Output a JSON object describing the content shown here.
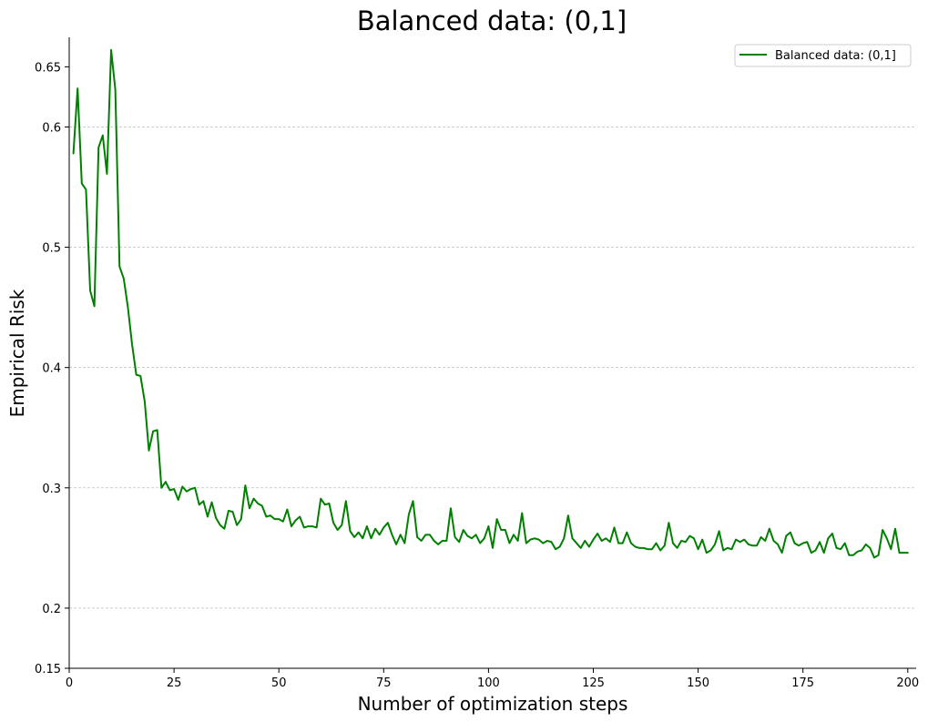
{
  "chart_data": {
    "type": "line",
    "title": "Balanced data: (0,1]",
    "xlabel": "Number of optimization steps",
    "ylabel": "Empirical Risk",
    "xlim": [
      0,
      202
    ],
    "ylim": [
      0.15,
      0.6745
    ],
    "xticks": [
      0,
      25,
      50,
      75,
      100,
      125,
      150,
      175,
      200
    ],
    "yticks": [
      0.15,
      0.2,
      0.3,
      0.4,
      0.5,
      0.6,
      0.65
    ],
    "ytick_labels": [
      "0.15",
      "0.2",
      "0.3",
      "0.4",
      "0.5",
      "0.6",
      "0.65"
    ],
    "grid": {
      "axis": "y",
      "style": "dashed",
      "values": [
        0.2,
        0.3,
        0.4,
        0.5,
        0.6
      ]
    },
    "legend_position": "top-right",
    "series": [
      {
        "name": "Balanced data: (0,1]",
        "color": "#008000",
        "x": [
          1,
          2,
          3,
          4,
          5,
          6,
          7,
          8,
          9,
          10,
          11,
          12,
          13,
          14,
          15,
          16,
          17,
          18,
          19,
          20,
          21,
          22,
          23,
          24,
          25,
          26,
          27,
          28,
          29,
          30,
          31,
          32,
          33,
          34,
          35,
          36,
          37,
          38,
          39,
          40,
          41,
          42,
          43,
          44,
          45,
          46,
          47,
          48,
          49,
          50,
          51,
          52,
          53,
          54,
          55,
          56,
          57,
          58,
          59,
          60,
          61,
          62,
          63,
          64,
          65,
          66,
          67,
          68,
          69,
          70,
          71,
          72,
          73,
          74,
          75,
          76,
          77,
          78,
          79,
          80,
          81,
          82,
          83,
          84,
          85,
          86,
          87,
          88,
          89,
          90,
          91,
          92,
          93,
          94,
          95,
          96,
          97,
          98,
          99,
          100,
          101,
          102,
          103,
          104,
          105,
          106,
          107,
          108,
          109,
          110,
          111,
          112,
          113,
          114,
          115,
          116,
          117,
          118,
          119,
          120,
          121,
          122,
          123,
          124,
          125,
          126,
          127,
          128,
          129,
          130,
          131,
          132,
          133,
          134,
          135,
          136,
          137,
          138,
          139,
          140,
          141,
          142,
          143,
          144,
          145,
          146,
          147,
          148,
          149,
          150,
          151,
          152,
          153,
          154,
          155,
          156,
          157,
          158,
          159,
          160,
          161,
          162,
          163,
          164,
          165,
          166,
          167,
          168,
          169,
          170,
          171,
          172,
          173,
          174,
          175,
          176,
          177,
          178,
          179,
          180,
          181,
          182,
          183,
          184,
          185,
          186,
          187,
          188,
          189,
          190,
          191,
          192,
          193,
          194,
          195,
          196,
          197,
          198,
          199,
          200
        ],
        "y": [
          0.578,
          0.632,
          0.553,
          0.548,
          0.464,
          0.451,
          0.583,
          0.593,
          0.561,
          0.664,
          0.631,
          0.484,
          0.474,
          0.45,
          0.419,
          0.394,
          0.393,
          0.372,
          0.331,
          0.347,
          0.348,
          0.3,
          0.305,
          0.298,
          0.299,
          0.29,
          0.301,
          0.297,
          0.299,
          0.3,
          0.286,
          0.289,
          0.276,
          0.288,
          0.275,
          0.269,
          0.266,
          0.281,
          0.28,
          0.269,
          0.274,
          0.302,
          0.283,
          0.291,
          0.287,
          0.285,
          0.276,
          0.277,
          0.274,
          0.274,
          0.272,
          0.282,
          0.268,
          0.273,
          0.276,
          0.267,
          0.268,
          0.268,
          0.267,
          0.291,
          0.286,
          0.287,
          0.271,
          0.265,
          0.269,
          0.289,
          0.264,
          0.259,
          0.263,
          0.258,
          0.268,
          0.258,
          0.266,
          0.261,
          0.267,
          0.271,
          0.261,
          0.253,
          0.261,
          0.254,
          0.278,
          0.289,
          0.259,
          0.256,
          0.261,
          0.261,
          0.256,
          0.253,
          0.256,
          0.256,
          0.283,
          0.259,
          0.255,
          0.265,
          0.26,
          0.258,
          0.261,
          0.254,
          0.258,
          0.268,
          0.25,
          0.274,
          0.265,
          0.265,
          0.254,
          0.261,
          0.256,
          0.279,
          0.254,
          0.257,
          0.258,
          0.257,
          0.254,
          0.256,
          0.255,
          0.249,
          0.251,
          0.258,
          0.277,
          0.258,
          0.254,
          0.25,
          0.256,
          0.251,
          0.257,
          0.262,
          0.256,
          0.258,
          0.255,
          0.267,
          0.254,
          0.254,
          0.263,
          0.254,
          0.251,
          0.25,
          0.25,
          0.249,
          0.249,
          0.254,
          0.248,
          0.252,
          0.271,
          0.254,
          0.25,
          0.256,
          0.255,
          0.26,
          0.258,
          0.249,
          0.257,
          0.246,
          0.248,
          0.253,
          0.264,
          0.248,
          0.25,
          0.249,
          0.257,
          0.255,
          0.257,
          0.253,
          0.252,
          0.252,
          0.259,
          0.256,
          0.266,
          0.256,
          0.253,
          0.246,
          0.26,
          0.263,
          0.254,
          0.252,
          0.254,
          0.255,
          0.246,
          0.248,
          0.255,
          0.246,
          0.258,
          0.262,
          0.25,
          0.249,
          0.254,
          0.244,
          0.244,
          0.247,
          0.248,
          0.253,
          0.25,
          0.242,
          0.244,
          0.265,
          0.258,
          0.249,
          0.266,
          0.246,
          0.246,
          0.246
        ]
      }
    ]
  }
}
